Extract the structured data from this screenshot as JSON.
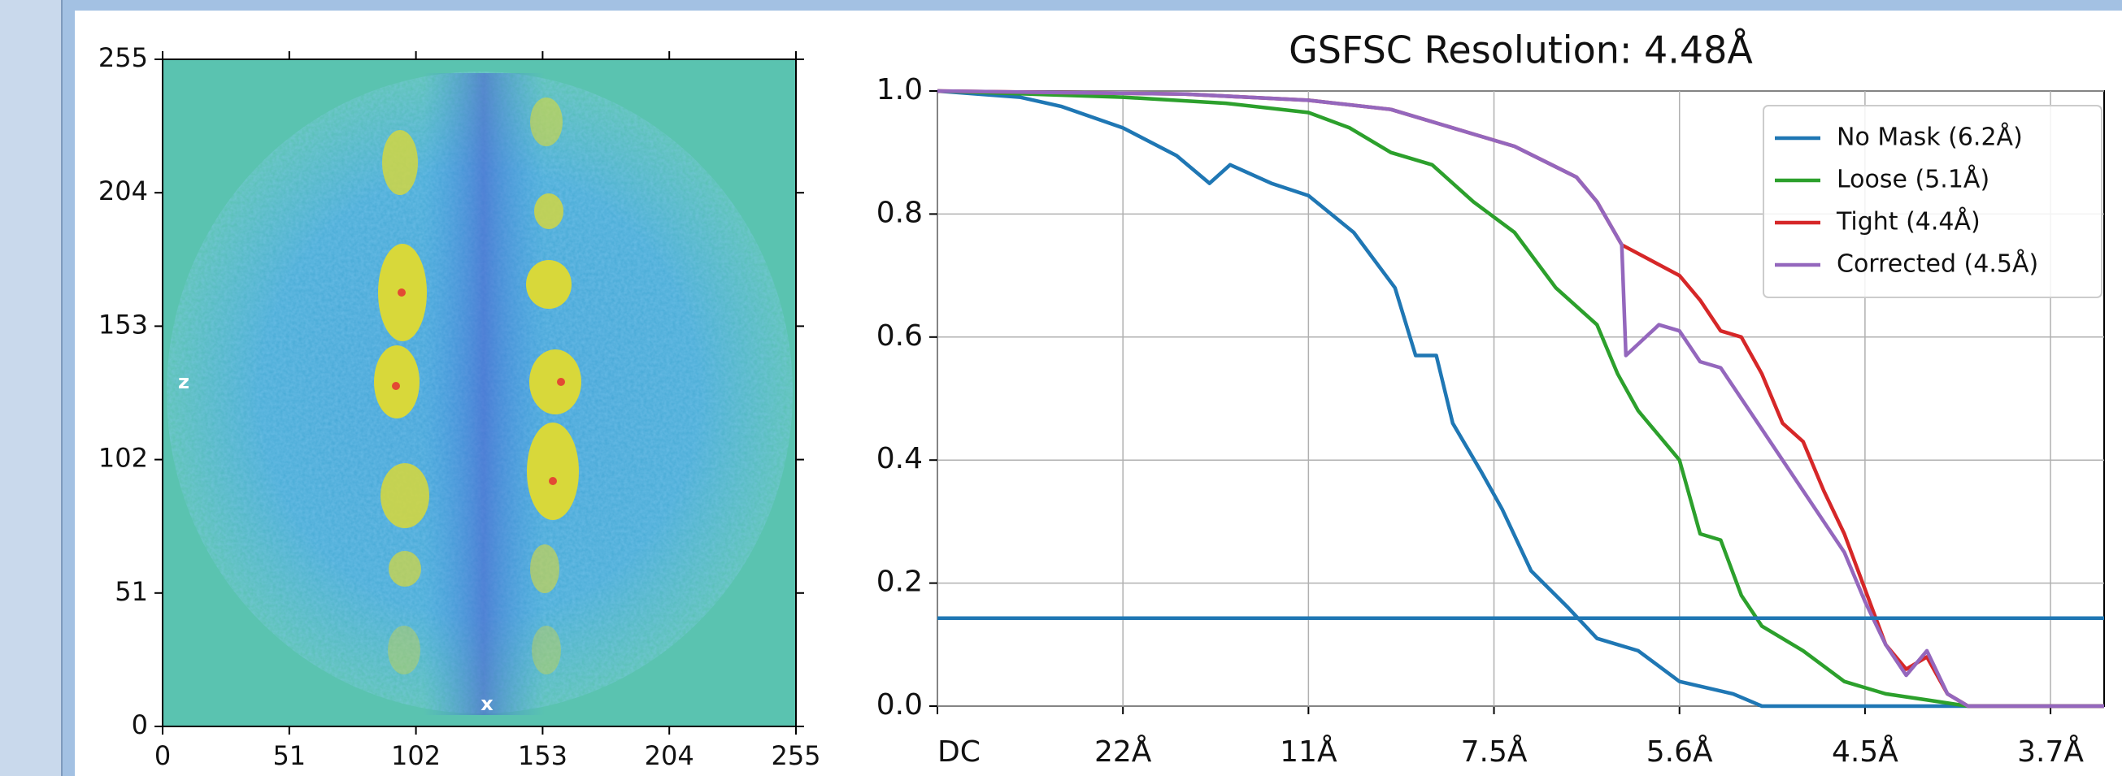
{
  "chart_data": [
    {
      "type": "image",
      "xlim": [
        0,
        255
      ],
      "ylim": [
        0,
        255
      ],
      "xticks": [
        0,
        51,
        102,
        153,
        204,
        255
      ],
      "yticks": [
        0,
        51,
        102,
        153,
        204,
        255
      ],
      "annotations": [
        "z",
        "x"
      ]
    },
    {
      "type": "line",
      "title": "GSFSC Resolution: 4.48Å",
      "xlim": [
        0,
        0.283
      ],
      "ylim": [
        0,
        1
      ],
      "xticks": [
        {
          "value": 0,
          "label": "DC"
        },
        {
          "value": 0.045,
          "label": "22Å"
        },
        {
          "value": 0.09,
          "label": "11Å"
        },
        {
          "value": 0.135,
          "label": "7.5Å"
        },
        {
          "value": 0.18,
          "label": "5.6Å"
        },
        {
          "value": 0.225,
          "label": "4.5Å"
        },
        {
          "value": 0.27,
          "label": "3.7Å"
        }
      ],
      "yticks": [
        {
          "value": 0,
          "label": "0.0"
        },
        0.2,
        0.4,
        0.6,
        0.8,
        {
          "value": 1,
          "label": "1.0"
        }
      ],
      "grid": true,
      "legend": "upper right",
      "hline": 0.143,
      "hline_color": "#1f77b4",
      "series": [
        {
          "name": "No Mask (6.2Å)",
          "color": "#1f77b4",
          "x": [
            0,
            0.02,
            0.03,
            0.045,
            0.058,
            0.066,
            0.071,
            0.081,
            0.09,
            0.101,
            0.111,
            0.116,
            0.121,
            0.125,
            0.132,
            0.137,
            0.144,
            0.153,
            0.16,
            0.17,
            0.18,
            0.193,
            0.2,
            0.283
          ],
          "values": [
            1.0,
            0.99,
            0.975,
            0.94,
            0.895,
            0.85,
            0.88,
            0.85,
            0.83,
            0.77,
            0.68,
            0.57,
            0.57,
            0.46,
            0.38,
            0.32,
            0.22,
            0.16,
            0.11,
            0.09,
            0.04,
            0.02,
            0.0,
            0.0
          ]
        },
        {
          "name": "Loose (5.1Å)",
          "color": "#2ca02c",
          "x": [
            0,
            0.045,
            0.07,
            0.09,
            0.1,
            0.11,
            0.12,
            0.13,
            0.14,
            0.15,
            0.16,
            0.165,
            0.17,
            0.18,
            0.185,
            0.19,
            0.195,
            0.2,
            0.21,
            0.22,
            0.23,
            0.24,
            0.25,
            0.283
          ],
          "values": [
            1.0,
            0.99,
            0.98,
            0.965,
            0.94,
            0.9,
            0.88,
            0.82,
            0.77,
            0.68,
            0.62,
            0.54,
            0.48,
            0.4,
            0.28,
            0.27,
            0.18,
            0.13,
            0.09,
            0.04,
            0.02,
            0.01,
            0.0,
            0.0
          ]
        },
        {
          "name": "Tight (4.4Å)",
          "color": "#d62728",
          "x": [
            0,
            0.06,
            0.09,
            0.11,
            0.13,
            0.14,
            0.155,
            0.16,
            0.166,
            0.18,
            0.185,
            0.19,
            0.195,
            0.2,
            0.205,
            0.21,
            0.215,
            0.22,
            0.225,
            0.23,
            0.235,
            0.24,
            0.245,
            0.25,
            0.283
          ],
          "values": [
            1.0,
            0.995,
            0.985,
            0.97,
            0.93,
            0.91,
            0.86,
            0.82,
            0.75,
            0.7,
            0.66,
            0.61,
            0.6,
            0.54,
            0.46,
            0.43,
            0.35,
            0.28,
            0.19,
            0.1,
            0.06,
            0.08,
            0.02,
            0.0,
            0.0
          ]
        },
        {
          "name": "Corrected (4.5Å)",
          "color": "#9467bd",
          "x": [
            0,
            0.06,
            0.09,
            0.11,
            0.13,
            0.14,
            0.155,
            0.16,
            0.166,
            0.167,
            0.175,
            0.18,
            0.185,
            0.19,
            0.2,
            0.205,
            0.21,
            0.22,
            0.225,
            0.23,
            0.235,
            0.24,
            0.245,
            0.25,
            0.283
          ],
          "values": [
            1.0,
            0.995,
            0.985,
            0.97,
            0.93,
            0.91,
            0.86,
            0.82,
            0.75,
            0.57,
            0.62,
            0.61,
            0.56,
            0.55,
            0.45,
            0.4,
            0.35,
            0.25,
            0.17,
            0.1,
            0.05,
            0.09,
            0.02,
            0.0,
            0.0
          ]
        }
      ]
    }
  ]
}
